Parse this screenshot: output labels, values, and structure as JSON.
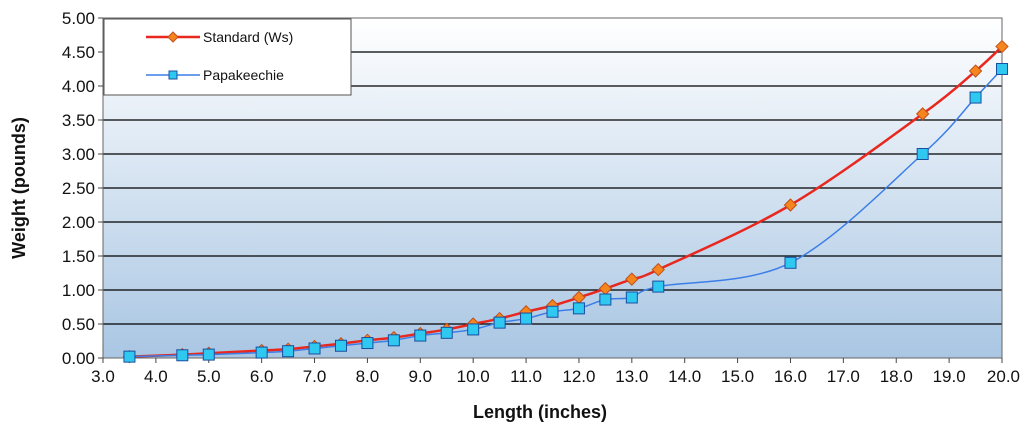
{
  "chart_data": {
    "type": "line",
    "xlabel": "Length (inches)",
    "ylabel": "Weight (pounds)",
    "xlim": [
      3.0,
      20.0
    ],
    "ylim": [
      0.0,
      5.0
    ],
    "x_ticks": [
      "3.0",
      "4.0",
      "5.0",
      "6.0",
      "7.0",
      "8.0",
      "9.0",
      "10.0",
      "11.0",
      "12.0",
      "13.0",
      "14.0",
      "15.0",
      "16.0",
      "17.0",
      "18.0",
      "19.0",
      "20.0"
    ],
    "y_ticks": [
      "0.00",
      "0.50",
      "1.00",
      "1.50",
      "2.00",
      "2.50",
      "3.00",
      "3.50",
      "4.00",
      "4.50",
      "5.00"
    ],
    "grid": "horizontal",
    "legend_position": "top-left",
    "series": [
      {
        "name": "Standard (Ws)",
        "color": "#e8281e",
        "marker": "diamond",
        "marker_color": "#f7851e",
        "x": [
          3.5,
          4.5,
          5.0,
          6.0,
          6.5,
          7.0,
          7.5,
          8.0,
          8.5,
          9.0,
          9.5,
          10.0,
          10.5,
          11.0,
          11.5,
          12.0,
          12.5,
          13.0,
          13.5,
          16.0,
          18.5,
          19.5,
          20.0
        ],
        "y": [
          0.02,
          0.05,
          0.07,
          0.11,
          0.13,
          0.17,
          0.21,
          0.26,
          0.3,
          0.36,
          0.42,
          0.5,
          0.58,
          0.68,
          0.77,
          0.89,
          1.02,
          1.16,
          1.3,
          2.25,
          3.59,
          4.22,
          4.58
        ]
      },
      {
        "name": "Papakeechie",
        "color": "#3c7ee8",
        "marker": "square",
        "marker_color": "#2ec8f0",
        "x": [
          3.5,
          4.5,
          5.0,
          6.0,
          6.5,
          7.0,
          7.5,
          8.0,
          8.5,
          9.0,
          9.5,
          10.0,
          10.5,
          11.0,
          11.5,
          12.0,
          12.5,
          13.0,
          13.5,
          16.0,
          18.5,
          19.5,
          20.0
        ],
        "y": [
          0.02,
          0.04,
          0.05,
          0.08,
          0.1,
          0.14,
          0.18,
          0.22,
          0.26,
          0.33,
          0.37,
          0.42,
          0.52,
          0.58,
          0.68,
          0.73,
          0.86,
          0.89,
          1.05,
          1.4,
          3.0,
          3.83,
          4.25
        ]
      }
    ]
  }
}
